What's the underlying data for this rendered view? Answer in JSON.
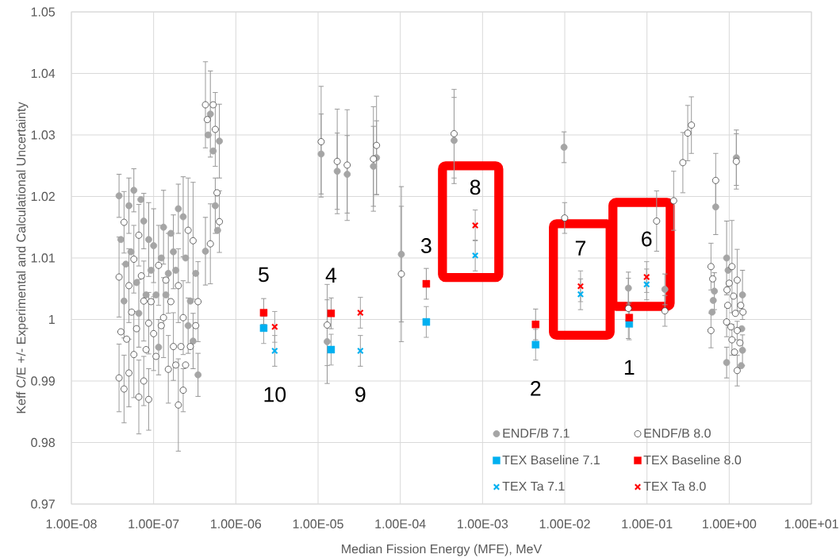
{
  "chart_data": {
    "type": "scatter",
    "xlabel": "Median Fission Energy (MFE), MeV",
    "ylabel": "Keff C/E +/- Experimental and Calculational Uncertainty",
    "log": "x",
    "grid": true,
    "legend": "bottom right",
    "xlim": [
      1e-08,
      10
    ],
    "ylim": [
      0.97,
      1.05
    ],
    "xticks": [
      {
        "value": 1e-08,
        "label": "1.00E-08"
      },
      {
        "value": 1e-07,
        "label": "1.00E-07"
      },
      {
        "value": 1e-06,
        "label": "1.00E-06"
      },
      {
        "value": 1e-05,
        "label": "1.00E-05"
      },
      {
        "value": 0.0001,
        "label": "1.00E-04"
      },
      {
        "value": 0.001,
        "label": "1.00E-03"
      },
      {
        "value": 0.01,
        "label": "1.00E-02"
      },
      {
        "value": 0.1,
        "label": "1.00E-01"
      },
      {
        "value": 1,
        "label": "1.00E+00"
      },
      {
        "value": 10,
        "label": "1.00E+01"
      }
    ],
    "yticks": [
      0.97,
      0.98,
      0.99,
      1,
      1.01,
      1.02,
      1.03,
      1.04,
      1.05
    ],
    "series": [
      {
        "name": "ENDF/B 7.1",
        "color": "#a5a5a5",
        "marker": "circle",
        "x": [
          3.8e-08,
          4.37e-08,
          5.01e-08,
          5.75e-08,
          6.61e-08,
          7.59e-08,
          8.71e-08,
          1e-07,
          1.15e-07,
          1.32e-07,
          1.51e-07,
          1.74e-07,
          2e-07,
          2.29e-07,
          2.63e-07,
          3.02e-07,
          3.47e-07,
          4e-08,
          4.6e-08,
          5.3e-08,
          6.2e-08,
          7e-08,
          8.1e-08,
          9.3e-08,
          1.07e-07,
          1.24e-07,
          1.41e-07,
          1.62e-07,
          1.86e-07,
          2.45e-07,
          2.8e-07,
          3.25e-07,
          4.27e-07,
          4.9e-07,
          5.62e-07,
          6.31e-07,
          4.6e-07,
          5.3e-07,
          6e-07,
          1.09e-05,
          1.29e-05,
          1.71e-05,
          2.26e-05,
          4.71e-05,
          5.14e-05,
          0.000103,
          0.000451,
          0.0098,
          0.0594,
          0.165,
          0.685,
          1.221,
          0.66,
          0.64,
          0.62,
          0.93,
          0.93,
          1.45,
          1.45,
          1.42,
          0.97,
          1.4
        ],
        "values": [
          1.0201,
          1.003,
          1.0185,
          1.021,
          1.001,
          1.016,
          1.013,
          1.012,
          0.9955,
          1.015,
          1.0075,
          1.011,
          1.018,
          1.0167,
          0.999,
          0.9965,
          0.991,
          1.013,
          1.009,
          1.011,
          1.006,
          1.0195,
          1.004,
          1.008,
          1.004,
          1.01,
          1.004,
          1.014,
          1.008,
          1.01,
          1.003,
          1.0075,
          1.0111,
          1.0334,
          1.0185,
          1.029,
          1.03,
          1.0274,
          1.0145,
          1.0269,
          0.9964,
          1.0241,
          1.0236,
          1.0249,
          1.0263,
          1.0106,
          1.0291,
          1.028,
          1.0051,
          1.0049,
          1.0183,
          1.0263,
          1.0046,
          1.0031,
          1.0012,
          1.01,
          0.993,
          1.004,
          0.995,
          0.9985,
          1.008,
          0.9925
        ],
        "errors": [
          0.0035,
          0.006,
          0.0045,
          0.0035,
          0.0055,
          0.0045,
          0.006,
          0.006,
          0.0045,
          0.006,
          0.0065,
          0.006,
          0.004,
          0.0065,
          0.0045,
          0.0045,
          0.0035,
          null,
          null,
          null,
          null,
          null,
          null,
          null,
          null,
          null,
          null,
          null,
          null,
          null,
          null,
          null,
          0.0055,
          0.007,
          0.0045,
          0.006,
          null,
          null,
          null,
          0.0065,
          0.0068,
          0.0062,
          0.0063,
          0.0065,
          0.006,
          0.011,
          0.007,
          0.0025,
          0.0026,
          0.0025,
          0.0045,
          0.0045,
          0.003,
          null,
          null,
          0.006,
          0.0025,
          0.004,
          0.0025,
          null,
          null,
          null
        ]
      },
      {
        "name": "ENDF/B 8.0",
        "color": "#ffffff",
        "marker": "circle",
        "x": [
          3.8e-08,
          3.8e-08,
          4.37e-08,
          4.37e-08,
          5.01e-08,
          5.01e-08,
          5.75e-08,
          5.75e-08,
          6.61e-08,
          6.61e-08,
          7.59e-08,
          7.59e-08,
          8.71e-08,
          8.71e-08,
          1e-07,
          1.15e-07,
          1.32e-07,
          1.51e-07,
          1.74e-07,
          2e-07,
          2e-07,
          2.29e-07,
          2.29e-07,
          2.63e-07,
          3.02e-07,
          3.47e-07,
          4e-08,
          4.7e-08,
          5.4e-08,
          6.2e-08,
          7.1e-08,
          8.1e-08,
          9.3e-08,
          1.07e-07,
          1.24e-07,
          1.41e-07,
          1.62e-07,
          1.86e-07,
          2.15e-07,
          2.45e-07,
          2.8e-07,
          3.25e-07,
          4.27e-07,
          4.9e-07,
          5.62e-07,
          6.31e-07,
          4.5e-07,
          5.3e-07,
          5.9e-07,
          1.09e-05,
          1.29e-05,
          1.71e-05,
          2.26e-05,
          4.71e-05,
          5.14e-05,
          0.000103,
          0.000451,
          0.00997,
          0.0594,
          0.131,
          0.165,
          0.211,
          0.273,
          0.313,
          0.347,
          0.685,
          1.221,
          0.6,
          0.6,
          0.63,
          0.93,
          1.08,
          1.08,
          1.25,
          1.25,
          1.25,
          1.13,
          1.0,
          0.96,
          1.19,
          1.38,
          1.05,
          1.35,
          1.16,
          1.47,
          0.94
        ],
        "values": [
          1.0069,
          0.9905,
          1.0158,
          0.9887,
          1.0055,
          0.9913,
          1.0098,
          0.9943,
          1.0137,
          0.9874,
          1.003,
          0.99,
          0.9994,
          0.987,
          0.9977,
          1.0088,
          1.0003,
          0.9919,
          0.9956,
          1.0055,
          0.9861,
          1.0003,
          0.9885,
          1.0145,
          1.0128,
          1.0029,
          0.998,
          0.9968,
          1.0012,
          0.9985,
          1.0071,
          0.9951,
          1.0029,
          0.994,
          0.999,
          1.0064,
          1.0029,
          0.9926,
          0.9956,
          0.9926,
          0.9956,
          0.999,
          1.0349,
          1.0123,
          1.0309,
          1.0159,
          1.0325,
          1.0349,
          1.0206,
          1.0289,
          0.9991,
          1.0257,
          1.0251,
          1.0261,
          1.0283,
          1.0074,
          1.0302,
          1.0165,
          1.0018,
          1.016,
          1.0014,
          1.0193,
          1.0255,
          1.0303,
          1.0316,
          1.0226,
          1.0257,
          1.0086,
          0.9982,
          1.0066,
          0.9996,
          1.0086,
          0.9967,
          1.0064,
          0.9982,
          0.9917,
          1.0038,
          1.0059,
          1.0023,
          1.001,
          1.0023,
          0.9988,
          0.9962,
          0.9947,
          1.0012,
          1.0048
        ],
        "errors": [
          0.0065,
          0.0055,
          0.005,
          0.0055,
          0.006,
          0.0055,
          0.0055,
          0.007,
          0.005,
          0.006,
          0.0065,
          0.004,
          0.005,
          0.005,
          0.006,
          0.0065,
          0.0065,
          0.0055,
          0.0055,
          0.006,
          0.0075,
          0.006,
          0.0035,
          0.0085,
          0.0095,
          0.0065,
          null,
          null,
          null,
          null,
          null,
          null,
          null,
          null,
          null,
          null,
          null,
          null,
          null,
          null,
          null,
          null,
          0.007,
          0.0065,
          0.006,
          0.005,
          null,
          null,
          null,
          0.009,
          0.0066,
          0.0085,
          0.009,
          0.0085,
          0.008,
          0.011,
          0.0072,
          0.0025,
          0.0049,
          0.0049,
          0.0025,
          0.0048,
          0.0049,
          0.0045,
          0.0046,
          0.0044,
          0.0045,
          0.0038,
          0.0028,
          null,
          0.0024,
          0.0075,
          0.0025,
          0.005,
          0.0015,
          0.0025,
          null,
          null,
          null,
          null,
          null,
          null,
          null,
          null,
          null,
          null
        ]
      },
      {
        "name": "TEX Baseline 7.1",
        "color": "#00b0f0",
        "marker": "square",
        "x": [
          2.18e-06,
          1.44e-05,
          0.000207,
          0.00442,
          0.0608
        ],
        "values": [
          0.9986,
          0.9951,
          0.9996,
          0.9959,
          0.9993
        ],
        "errors": [
          [
            0.9961,
            1.0005
          ],
          0.0025,
          0.0025,
          0.0025,
          [
            0.9967,
            1.0
          ]
        ]
      },
      {
        "name": "TEX Baseline 8.0",
        "color": "#ff0000",
        "marker": "square",
        "x": [
          2.18e-06,
          1.44e-05,
          0.000207,
          0.00442,
          0.0608
        ],
        "values": [
          1.0011,
          1.001,
          1.0058,
          0.9992,
          1.0003
        ],
        "errors": [
          [
            0.9992,
            1.0034
          ],
          0.0025,
          0.0025,
          0.0025,
          [
            0.9998,
            1.0028
          ]
        ]
      },
      {
        "name": "TEX Ta 7.1",
        "color": "#00b0f0",
        "marker": "cross",
        "x": [
          2.97e-06,
          3.27e-05,
          0.000815,
          0.01556,
          0.099
        ],
        "values": [
          0.9949,
          0.9949,
          1.0104,
          1.0041,
          1.0057
        ],
        "errors": [
          0.0025,
          0.0025,
          0.0025,
          0.0025,
          0.0025
        ]
      },
      {
        "name": "TEX Ta 8.0",
        "color": "#ff0000",
        "marker": "cross",
        "x": [
          2.97e-06,
          3.27e-05,
          0.000815,
          0.01556,
          0.099
        ],
        "values": [
          0.9988,
          1.0011,
          1.0153,
          1.0054,
          1.0069
        ],
        "errors": [
          0.0025,
          0.0025,
          0.0025,
          0.0025,
          0.0025
        ]
      }
    ],
    "annotations": [
      {
        "text": "1",
        "x": 0.0608,
        "y": 0.9993
      },
      {
        "text": "2",
        "x": 0.00442,
        "y": 0.9959
      },
      {
        "text": "3",
        "x": 0.000207,
        "y": 1.0058
      },
      {
        "text": "4",
        "x": 1.44e-05,
        "y": 1.001
      },
      {
        "text": "5",
        "x": 2.18e-06,
        "y": 1.0011
      },
      {
        "text": "6",
        "x": 0.099,
        "y": 1.0069
      },
      {
        "text": "7",
        "x": 0.01556,
        "y": 1.0054
      },
      {
        "text": "8",
        "x": 0.000815,
        "y": 1.0153
      },
      {
        "text": "9",
        "x": 3.27e-05,
        "y": 0.9949
      },
      {
        "text": "10",
        "x": 2.97e-06,
        "y": 0.9949
      }
    ]
  }
}
